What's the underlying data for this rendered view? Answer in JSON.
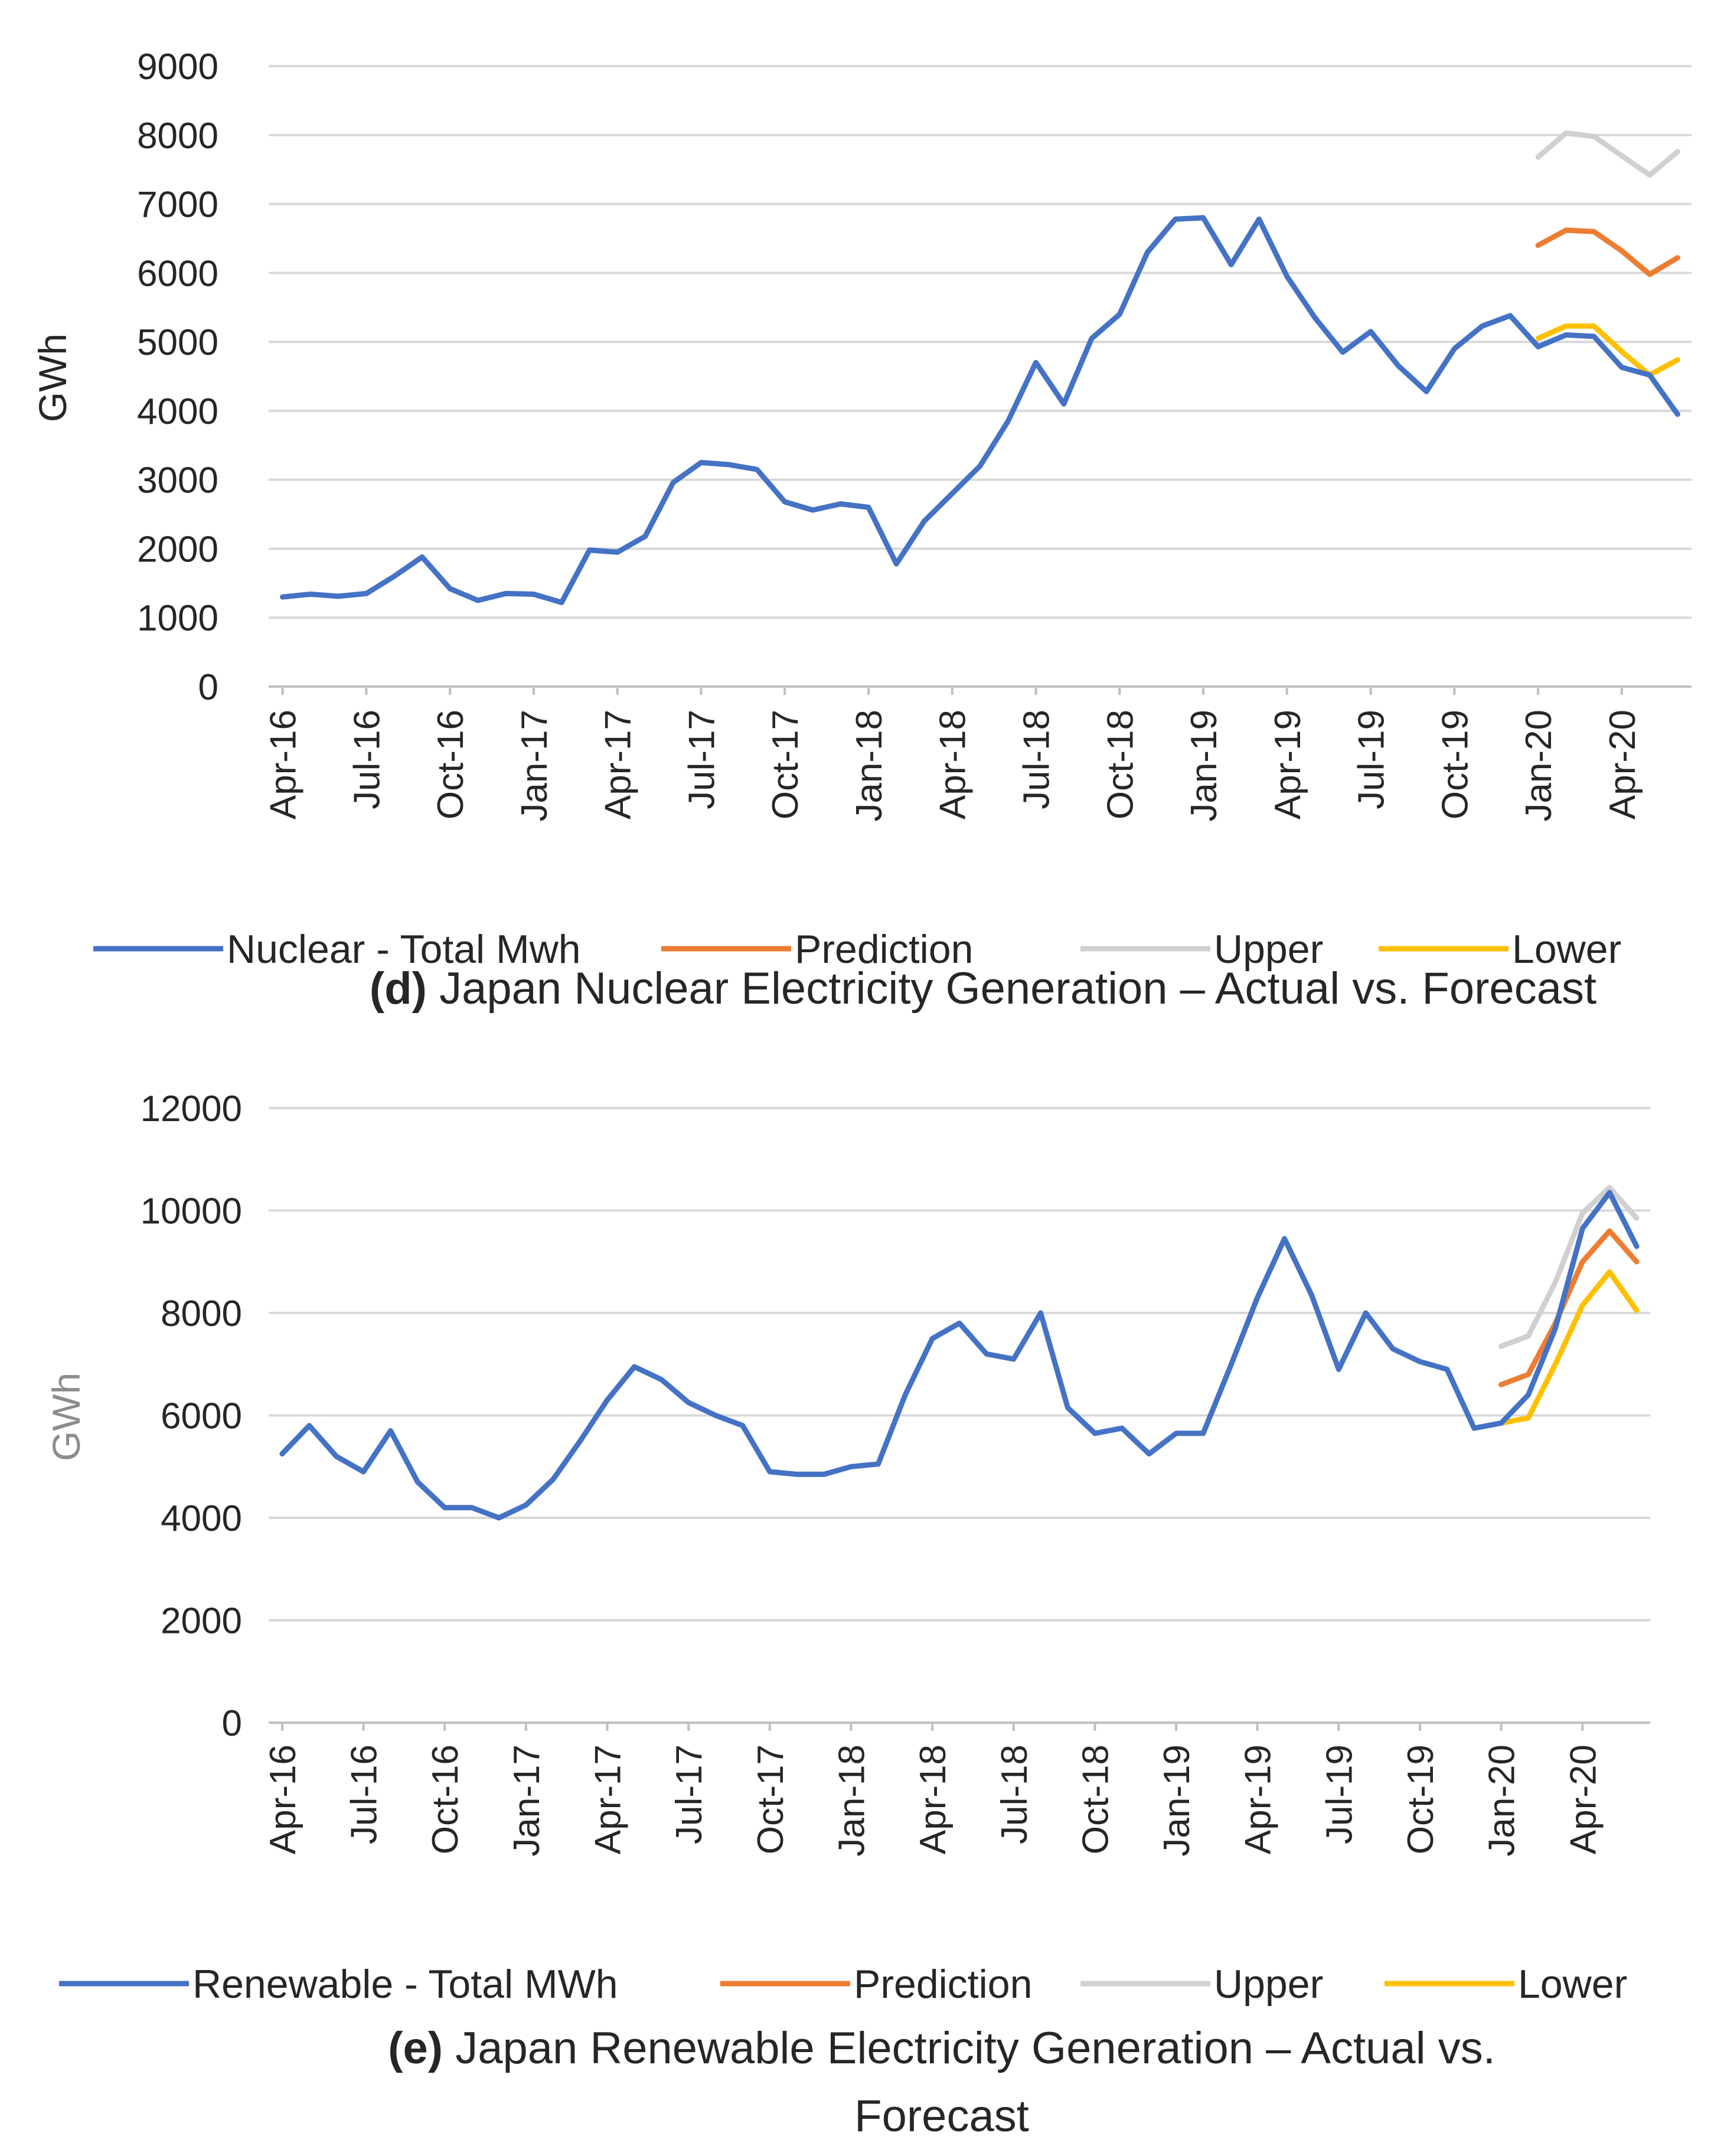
{
  "chart_data": [
    {
      "type": "line",
      "title": "Japan Nuclear Electricity Generation – Actual vs. Forecast",
      "panel_label": "(d)",
      "caption_lines": [
        [
          "(d)",
          " Japan Nuclear Electricity Generation – Actual vs. Forecast"
        ]
      ],
      "ylabel": "GWh",
      "ylim": [
        0,
        9000
      ],
      "yticks": [
        0,
        1000,
        2000,
        3000,
        4000,
        5000,
        6000,
        7000,
        8000,
        9000
      ],
      "ytick_labels": [
        "0",
        "1000",
        "2000",
        "3000",
        "4000",
        "5000",
        "6000",
        "7000",
        "8000",
        "9000"
      ],
      "grid": true,
      "legend_position": "bottom",
      "x_tick_labels": [
        {
          "index": 0,
          "label": "Apr-16"
        },
        {
          "index": 3,
          "label": "Jul-16"
        },
        {
          "index": 6,
          "label": "Oct-16"
        },
        {
          "index": 9,
          "label": "Jan-17"
        },
        {
          "index": 12,
          "label": "Apr-17"
        },
        {
          "index": 15,
          "label": "Jul-17"
        },
        {
          "index": 18,
          "label": "Oct-17"
        },
        {
          "index": 21,
          "label": "Jan-18"
        },
        {
          "index": 24,
          "label": "Apr-18"
        },
        {
          "index": 27,
          "label": "Jul-18"
        },
        {
          "index": 30,
          "label": "Oct-18"
        },
        {
          "index": 33,
          "label": "Jan-19"
        },
        {
          "index": 36,
          "label": "Apr-19"
        },
        {
          "index": 39,
          "label": "Jul-19"
        },
        {
          "index": 42,
          "label": "Oct-19"
        },
        {
          "index": 45,
          "label": "Jan-20"
        },
        {
          "index": 48,
          "label": "Apr-20"
        }
      ],
      "n_points": 51,
      "series": [
        {
          "name": "Nuclear - Total Mwh",
          "color": "#4472c4",
          "start_index": 0,
          "values": [
            1300,
            1340,
            1310,
            1350,
            1600,
            1880,
            1420,
            1250,
            1350,
            1340,
            1220,
            1980,
            1950,
            2180,
            2960,
            3250,
            3220,
            3150,
            2680,
            2560,
            2650,
            2600,
            1780,
            2400,
            2800,
            3200,
            3850,
            4700,
            4100,
            5050,
            5400,
            6300,
            6780,
            6800,
            6120,
            6780,
            5950,
            5350,
            4850,
            5150,
            4650,
            4280,
            4900,
            5230,
            5380,
            4930,
            5100,
            5080,
            4630,
            4520,
            3950
          ]
        },
        {
          "name": "Prediction",
          "color": "#ed7d31",
          "start_index": 45,
          "values": [
            6400,
            6620,
            6600,
            6320,
            5980,
            6220
          ]
        },
        {
          "name": "Upper",
          "color": "#d0d0d0",
          "start_index": 45,
          "values": [
            7680,
            8030,
            7980,
            7700,
            7420,
            7760
          ]
        },
        {
          "name": "Lower",
          "color": "#ffc000",
          "start_index": 45,
          "values": [
            5050,
            5230,
            5230,
            4860,
            4520,
            4740
          ]
        }
      ]
    },
    {
      "type": "line",
      "title": "Japan Renewable Electricity Generation – Actual vs. Forecast",
      "panel_label": "(e)",
      "caption_lines": [
        [
          "(e)",
          " Japan Renewable  Electricity Generation – Actual vs."
        ],
        [
          "",
          "Forecast"
        ]
      ],
      "ylabel": "GWh",
      "ylim": [
        0,
        12000
      ],
      "yticks": [
        0,
        2000,
        4000,
        6000,
        8000,
        10000,
        12000
      ],
      "ytick_labels": [
        "0",
        "2000",
        "4000",
        "6000",
        "8000",
        "10000",
        "12000"
      ],
      "grid": true,
      "legend_position": "bottom",
      "x_tick_labels": [
        {
          "index": 0,
          "label": "Apr-16"
        },
        {
          "index": 3,
          "label": "Jul-16"
        },
        {
          "index": 6,
          "label": "Oct-16"
        },
        {
          "index": 9,
          "label": "Jan-17"
        },
        {
          "index": 12,
          "label": "Apr-17"
        },
        {
          "index": 15,
          "label": "Jul-17"
        },
        {
          "index": 18,
          "label": "Oct-17"
        },
        {
          "index": 21,
          "label": "Jan-18"
        },
        {
          "index": 24,
          "label": "Apr-18"
        },
        {
          "index": 27,
          "label": "Jul-18"
        },
        {
          "index": 30,
          "label": "Oct-18"
        },
        {
          "index": 33,
          "label": "Jan-19"
        },
        {
          "index": 36,
          "label": "Apr-19"
        },
        {
          "index": 39,
          "label": "Jul-19"
        },
        {
          "index": 42,
          "label": "Oct-19"
        },
        {
          "index": 45,
          "label": "Jan-20"
        },
        {
          "index": 48,
          "label": "Apr-20"
        }
      ],
      "n_points": 51,
      "series": [
        {
          "name": "Renewable - Total MWh",
          "color": "#4472c4",
          "start_index": 0,
          "values": [
            5250,
            5800,
            5200,
            4900,
            5700,
            4700,
            4200,
            4200,
            4000,
            4250,
            4750,
            5500,
            6300,
            6950,
            6700,
            6250,
            6000,
            5800,
            4900,
            4850,
            4850,
            5000,
            5050,
            6400,
            7500,
            7800,
            7200,
            7100,
            8000,
            6150,
            5650,
            5750,
            5250,
            5650,
            5650,
            6950,
            8300,
            9450,
            8350,
            6900,
            8000,
            7300,
            7050,
            6900,
            5750,
            5850,
            6400,
            7700,
            9650,
            10350,
            9300
          ]
        },
        {
          "name": "Prediction",
          "color": "#ed7d31",
          "start_index": 45,
          "values": [
            6600,
            6800,
            7800,
            9000,
            9600,
            9000
          ]
        },
        {
          "name": "Upper",
          "color": "#d0d0d0",
          "start_index": 45,
          "values": [
            7350,
            7550,
            8600,
            9950,
            10450,
            9850
          ]
        },
        {
          "name": "Lower",
          "color": "#ffc000",
          "start_index": 45,
          "values": [
            5850,
            5950,
            7000,
            8150,
            8800,
            8050
          ]
        }
      ]
    }
  ]
}
